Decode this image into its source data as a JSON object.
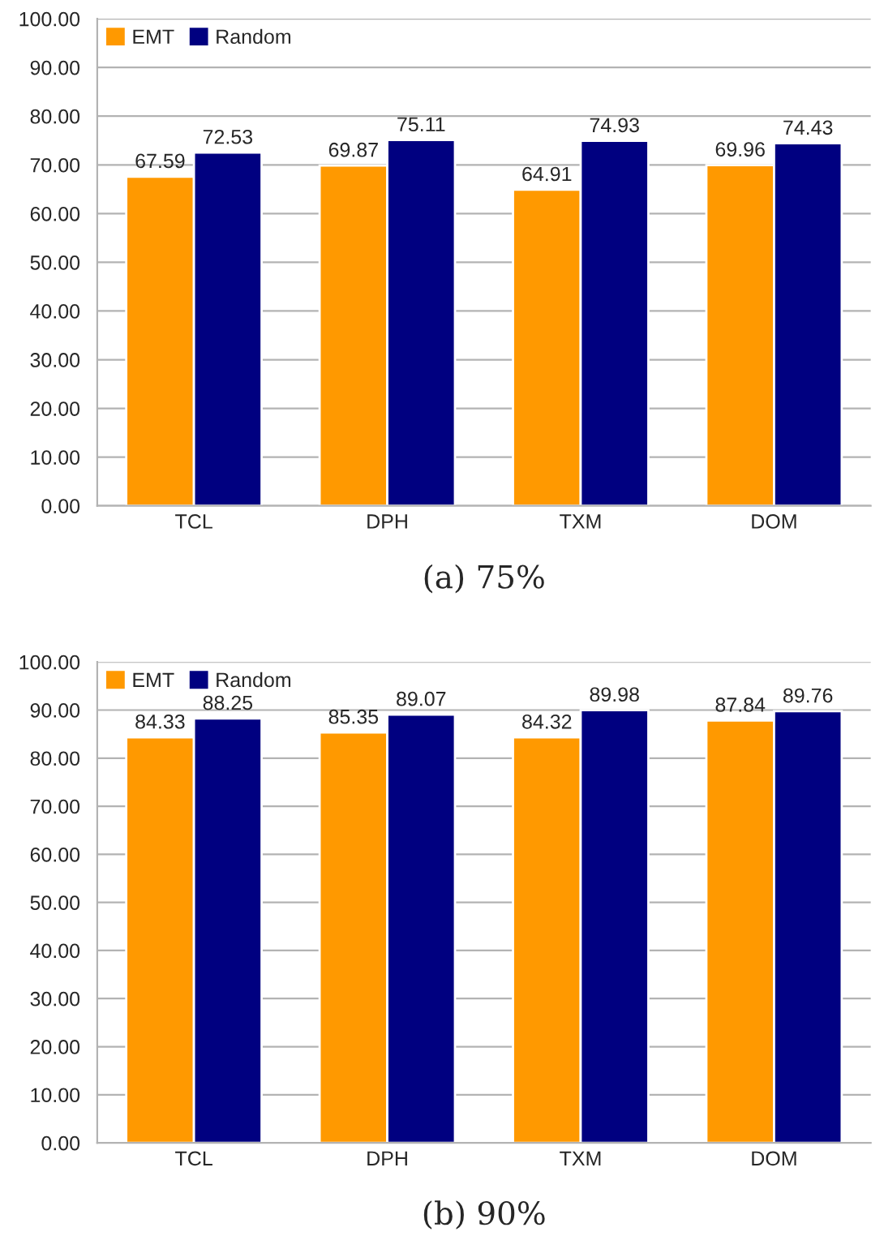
{
  "chart_data": [
    {
      "type": "bar",
      "categories": [
        "TCL",
        "DPH",
        "TXM",
        "DOM"
      ],
      "series": [
        {
          "name": "EMT",
          "color": "#ff9900",
          "values": [
            67.59,
            69.87,
            64.91,
            69.96
          ]
        },
        {
          "name": "Random",
          "color": "#000080",
          "values": [
            72.53,
            75.11,
            74.93,
            74.43
          ]
        }
      ],
      "ylim": [
        0,
        100
      ],
      "yticks": [
        {
          "value": 0,
          "label": "0.00"
        },
        {
          "value": 10,
          "label": "10.00"
        },
        {
          "value": 20,
          "label": "20.00"
        },
        {
          "value": 30,
          "label": "30.00"
        },
        {
          "value": 40,
          "label": "40.00"
        },
        {
          "value": 50,
          "label": "50.00"
        },
        {
          "value": 60,
          "label": "60.00"
        },
        {
          "value": 70,
          "label": "70.00"
        },
        {
          "value": 80,
          "label": "80.00"
        },
        {
          "value": 90,
          "label": "90.00"
        },
        {
          "value": 100,
          "label": "100.00"
        }
      ],
      "grid": "y",
      "legend": "top left",
      "data_labels": true,
      "annotations": [
        "(a) 75%"
      ]
    },
    {
      "type": "bar",
      "categories": [
        "TCL",
        "DPH",
        "TXM",
        "DOM"
      ],
      "series": [
        {
          "name": "EMT",
          "color": "#ff9900",
          "values": [
            84.33,
            85.35,
            84.32,
            87.84
          ]
        },
        {
          "name": "Random",
          "color": "#000080",
          "values": [
            88.25,
            89.07,
            89.98,
            89.76
          ]
        }
      ],
      "ylim": [
        0,
        100
      ],
      "yticks": [
        {
          "value": 0,
          "label": "0.00"
        },
        {
          "value": 10,
          "label": "10.00"
        },
        {
          "value": 20,
          "label": "20.00"
        },
        {
          "value": 30,
          "label": "30.00"
        },
        {
          "value": 40,
          "label": "40.00"
        },
        {
          "value": 50,
          "label": "50.00"
        },
        {
          "value": 60,
          "label": "60.00"
        },
        {
          "value": 70,
          "label": "70.00"
        },
        {
          "value": 80,
          "label": "80.00"
        },
        {
          "value": 90,
          "label": "90.00"
        },
        {
          "value": 100,
          "label": "100.00"
        }
      ],
      "grid": "y",
      "legend": "top left",
      "data_labels": true,
      "annotations": [
        "(b) 90%"
      ]
    }
  ]
}
